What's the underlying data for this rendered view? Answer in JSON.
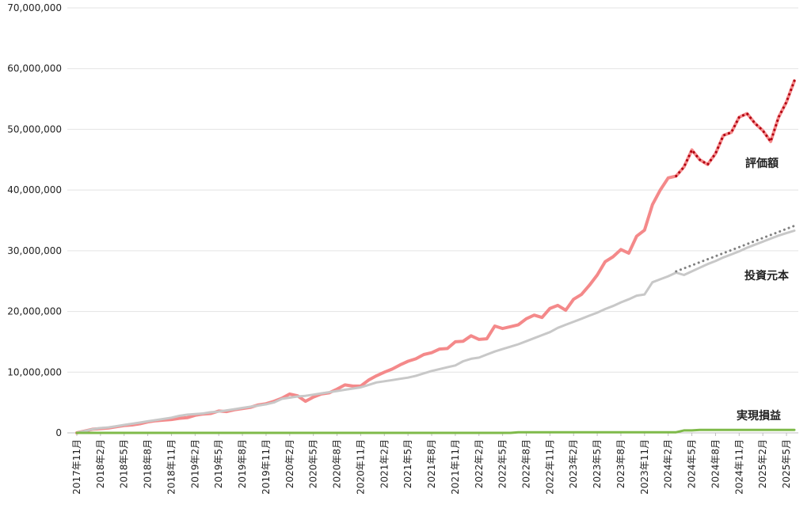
{
  "chart_data": {
    "type": "line",
    "categories": [
      "2017年11月",
      null,
      null,
      "2018年2月",
      null,
      null,
      "2018年5月",
      null,
      null,
      "2018年8月",
      null,
      null,
      "2018年11月",
      null,
      null,
      "2019年2月",
      null,
      null,
      "2019年5月",
      null,
      null,
      "2019年8月",
      null,
      null,
      "2019年11月",
      null,
      null,
      "2020年2月",
      null,
      null,
      "2020年5月",
      null,
      null,
      "2020年8月",
      null,
      null,
      "2020年11月",
      null,
      null,
      "2021年2月",
      null,
      null,
      "2021年5月",
      null,
      null,
      "2021年8月",
      null,
      null,
      "2021年11月",
      null,
      null,
      "2022年2月",
      null,
      null,
      "2022年5月",
      null,
      null,
      "2022年8月",
      null,
      null,
      "2022年11月",
      null,
      null,
      "2023年2月",
      null,
      null,
      "2023年5月",
      null,
      null,
      "2023年8月",
      null,
      null,
      "2023年11月",
      null,
      null,
      "2024年2月",
      null,
      null,
      "2024年5月",
      null,
      null,
      "2024年8月",
      null,
      null,
      "2024年11月",
      null,
      null,
      "2025年2月",
      null,
      null,
      "2025年5月",
      null
    ],
    "series": [
      {
        "name": "評価額",
        "color": "#f4898a",
        "width": 4,
        "values": [
          0,
          300000,
          600000,
          700000,
          800000,
          1000000,
          1200000,
          1300000,
          1500000,
          1800000,
          2000000,
          2100000,
          2200000,
          2400000,
          2500000,
          2900000,
          3100000,
          3200000,
          3600000,
          3500000,
          3800000,
          4000000,
          4200000,
          4600000,
          4800000,
          5200000,
          5700000,
          6400000,
          6100000,
          5200000,
          5900000,
          6400000,
          6600000,
          7200000,
          7900000,
          7700000,
          7700000,
          8700000,
          9400000,
          10000000,
          10500000,
          11200000,
          11800000,
          12200000,
          12900000,
          13200000,
          13800000,
          13900000,
          15000000,
          15100000,
          16000000,
          15400000,
          15500000,
          17600000,
          17200000,
          17500000,
          17800000,
          18800000,
          19400000,
          19000000,
          20500000,
          21000000,
          20200000,
          22000000,
          22800000,
          24300000,
          26000000,
          28200000,
          29000000,
          30200000,
          29600000,
          32400000,
          33400000,
          37600000,
          40000000,
          42000000,
          42300000,
          43800000,
          46600000,
          45000000,
          44200000,
          46000000,
          49000000,
          49500000,
          52000000,
          52600000,
          51000000,
          49800000,
          48000000,
          52000000,
          54500000,
          58000000
        ]
      },
      {
        "name": "投資元本",
        "color": "#c8c8c8",
        "width": 3,
        "values": [
          0,
          300000,
          600000,
          800000,
          900000,
          1100000,
          1300000,
          1500000,
          1700000,
          1900000,
          2100000,
          2300000,
          2500000,
          2800000,
          3000000,
          3100000,
          3200000,
          3400000,
          3500000,
          3700000,
          3900000,
          4100000,
          4300000,
          4500000,
          4700000,
          5000000,
          5600000,
          5800000,
          6000000,
          6100000,
          6300000,
          6500000,
          6700000,
          6900000,
          7100000,
          7300000,
          7500000,
          7900000,
          8300000,
          8500000,
          8700000,
          8900000,
          9100000,
          9400000,
          9800000,
          10200000,
          10500000,
          10800000,
          11100000,
          11800000,
          12200000,
          12400000,
          12900000,
          13400000,
          13800000,
          14200000,
          14600000,
          15100000,
          15600000,
          16100000,
          16600000,
          17300000,
          17800000,
          18300000,
          18800000,
          19300000,
          19800000,
          20400000,
          20900000,
          21500000,
          22000000,
          22600000,
          22800000,
          24800000,
          25300000,
          25800000,
          26400000,
          26000000,
          26600000,
          27200000,
          27800000,
          28300000,
          28900000,
          29400000,
          29900000,
          30500000,
          31000000,
          31500000,
          32000000,
          32500000,
          32900000,
          33300000
        ]
      },
      {
        "name": "実現損益",
        "color": "#7fba4a",
        "width": 3,
        "values": [
          0,
          0,
          0,
          0,
          0,
          0,
          0,
          0,
          0,
          0,
          0,
          0,
          0,
          0,
          0,
          0,
          0,
          0,
          0,
          0,
          0,
          0,
          0,
          0,
          0,
          0,
          0,
          0,
          0,
          0,
          0,
          0,
          0,
          0,
          0,
          0,
          0,
          0,
          0,
          0,
          0,
          0,
          0,
          0,
          0,
          0,
          0,
          0,
          0,
          0,
          0,
          0,
          0,
          0,
          0,
          0,
          100000,
          100000,
          100000,
          100000,
          100000,
          100000,
          100000,
          100000,
          100000,
          100000,
          100000,
          100000,
          100000,
          100000,
          100000,
          100000,
          100000,
          100000,
          100000,
          100000,
          100000,
          400000,
          400000,
          500000,
          500000,
          500000,
          500000,
          500000,
          500000,
          500000,
          500000,
          500000,
          500000,
          500000,
          500000,
          500000
        ]
      },
      {
        "color": "#b00010",
        "dotted": true,
        "width": 3,
        "values": [
          null,
          null,
          null,
          null,
          null,
          null,
          null,
          null,
          null,
          null,
          null,
          null,
          null,
          null,
          null,
          null,
          null,
          null,
          null,
          null,
          null,
          null,
          null,
          null,
          null,
          null,
          null,
          null,
          null,
          null,
          null,
          null,
          null,
          null,
          null,
          null,
          null,
          null,
          null,
          null,
          null,
          null,
          null,
          null,
          null,
          null,
          null,
          null,
          null,
          null,
          null,
          null,
          null,
          null,
          null,
          null,
          null,
          null,
          null,
          null,
          null,
          null,
          null,
          null,
          null,
          null,
          null,
          null,
          null,
          null,
          null,
          null,
          null,
          null,
          null,
          null,
          42300000,
          43800000,
          46600000,
          45000000,
          44200000,
          46000000,
          49000000,
          49500000,
          52000000,
          52600000,
          51000000,
          49800000,
          48000000,
          52000000,
          54500000,
          58000000
        ]
      },
      {
        "color": "#808080",
        "dotted": true,
        "width": 3,
        "values": [
          null,
          null,
          null,
          null,
          null,
          null,
          null,
          null,
          null,
          null,
          null,
          null,
          null,
          null,
          null,
          null,
          null,
          null,
          null,
          null,
          null,
          null,
          null,
          null,
          null,
          null,
          null,
          null,
          null,
          null,
          null,
          null,
          null,
          null,
          null,
          null,
          null,
          null,
          null,
          null,
          null,
          null,
          null,
          null,
          null,
          null,
          null,
          null,
          null,
          null,
          null,
          null,
          null,
          null,
          null,
          null,
          null,
          null,
          null,
          null,
          null,
          null,
          null,
          null,
          null,
          null,
          null,
          null,
          null,
          null,
          null,
          null,
          null,
          null,
          null,
          null,
          26600000,
          27100000,
          27600000,
          28100000,
          28600000,
          29100000,
          29600000,
          30100000,
          30600000,
          31100000,
          31600000,
          32100000,
          32600000,
          33100000,
          33600000,
          34100000
        ]
      }
    ],
    "ylim": [
      0,
      70000000
    ],
    "yticks": [
      0,
      {
        "value": 10000000,
        "label": "10,000,000"
      },
      {
        "value": 20000000,
        "label": "20,000,000"
      },
      {
        "value": 30000000,
        "label": "30,000,000"
      },
      {
        "value": 40000000,
        "label": "40,000,000"
      },
      {
        "value": 50000000,
        "label": "50,000,000"
      },
      {
        "value": 60000000,
        "label": "60,000,000"
      },
      {
        "value": 70000000,
        "label": "70,000,000"
      }
    ],
    "grid": true
  }
}
